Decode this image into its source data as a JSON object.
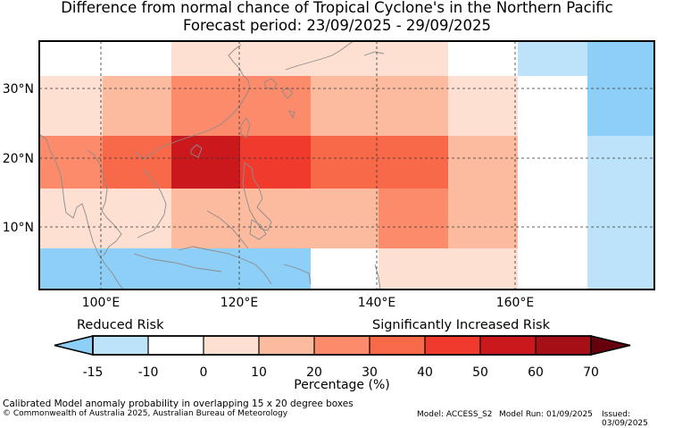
{
  "title": "Difference from normal chance of Tropical Cyclone's in the Northern Pacific",
  "subtitle": "Forecast period: 23/09/2025 - 29/09/2025",
  "map": {
    "lon_range": [
      91,
      180
    ],
    "lat_range": [
      1,
      37
    ],
    "gridlines_lon": [
      100,
      120,
      140,
      160
    ],
    "gridlines_lat": [
      10,
      20,
      30
    ],
    "lon_ticks": [
      "100°E",
      "120°E",
      "140°E",
      "160°E"
    ],
    "lat_ticks": [
      "30°N",
      "20°N",
      "10°N"
    ],
    "cells_lon_lat_value_pct": [
      [
        110,
        30,
        37,
        5
      ],
      [
        120,
        30,
        37,
        5
      ],
      [
        130,
        30,
        37,
        5
      ],
      [
        140,
        30,
        37,
        5
      ],
      [
        160,
        170,
        37,
        -10
      ],
      [
        170,
        180,
        37,
        -15
      ],
      [
        91,
        100,
        30,
        5
      ],
      [
        100,
        110,
        30,
        15
      ],
      [
        110,
        130,
        30,
        25
      ],
      [
        130,
        150,
        30,
        15
      ],
      [
        150,
        160,
        30,
        5
      ],
      [
        170,
        180,
        30,
        -15
      ],
      [
        91,
        100,
        20,
        25
      ],
      [
        100,
        110,
        20,
        35
      ],
      [
        110,
        120,
        20,
        55
      ],
      [
        120,
        130,
        20,
        45
      ],
      [
        130,
        150,
        20,
        35
      ],
      [
        150,
        160,
        20,
        15
      ],
      [
        170,
        180,
        20,
        -10
      ],
      [
        91,
        110,
        10,
        5
      ],
      [
        110,
        140,
        10,
        15
      ],
      [
        140,
        150,
        10,
        25
      ],
      [
        150,
        160,
        10,
        15
      ],
      [
        170,
        180,
        10,
        -10
      ],
      [
        91,
        130,
        0,
        -15
      ],
      [
        140,
        160,
        0,
        5
      ],
      [
        170,
        180,
        0,
        -10
      ]
    ]
  },
  "legend": {
    "reduced_label": "Reduced Risk",
    "increased_label": "Significantly Increased Risk",
    "ticks": [
      "-15",
      "-10",
      "0",
      "10",
      "20",
      "30",
      "40",
      "50",
      "60",
      "70"
    ],
    "colors": [
      "#8ecff7",
      "#bde3fb",
      "#ffffff",
      "#fde0d2",
      "#fcbb9e",
      "#fb8b6b",
      "#f8694a",
      "#ef3a2d",
      "#cb181d",
      "#a50f15",
      "#67000d"
    ],
    "xlabel": "Percentage (%)"
  },
  "footer": {
    "note": "Calibrated Model anomaly probability in overlapping 15 x 20 degree boxes",
    "copyright": "© Commonwealth of Australia 2025, Australian Bureau of Meteorology",
    "model": "Model: ACCESS_S2",
    "model_run": "Model Run: 01/09/2025",
    "issued": "Issued: 03/09/2025"
  }
}
